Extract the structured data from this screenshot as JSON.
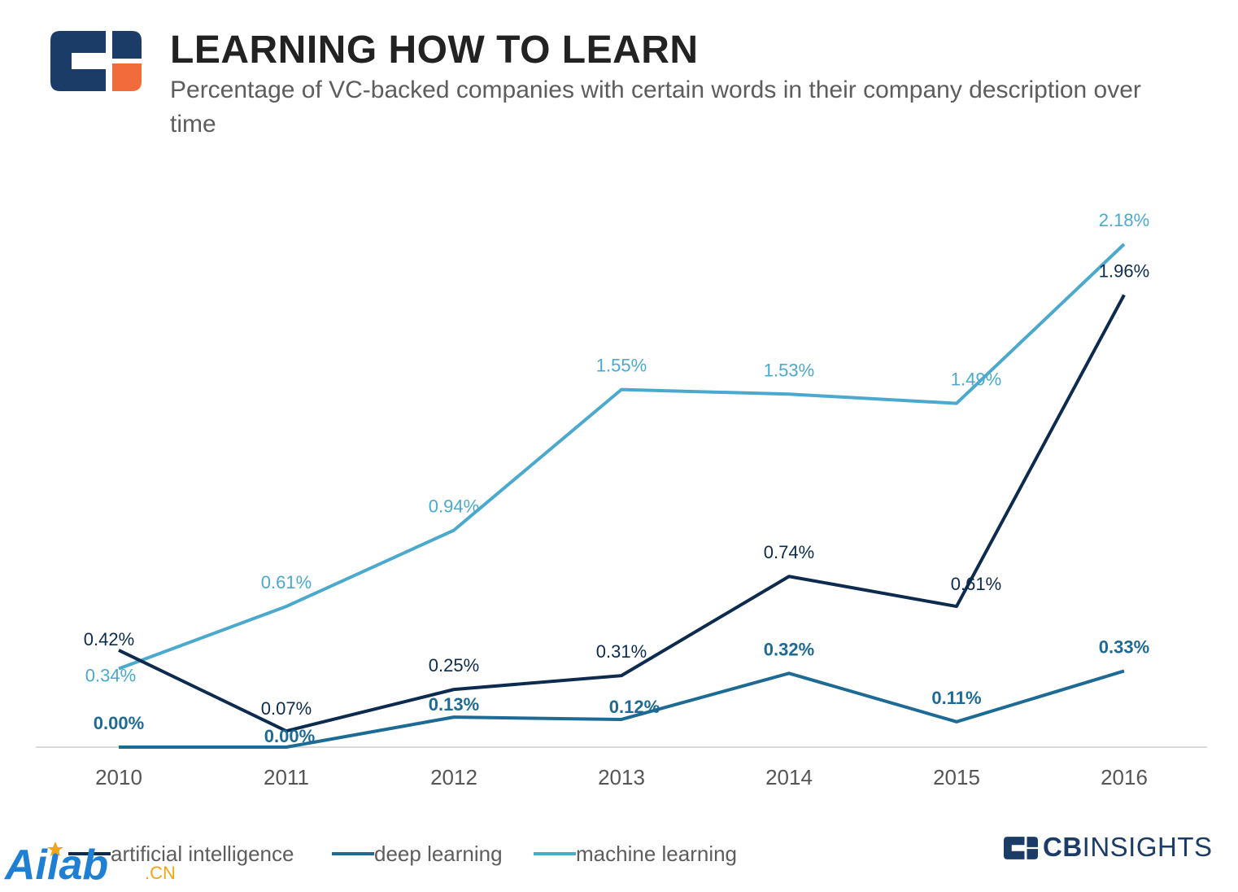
{
  "header": {
    "title": "LEARNING HOW TO LEARN",
    "subtitle": "Percentage of VC-backed companies with certain words in their company description over time"
  },
  "brand": {
    "logo_icon": "cb-insights-logo-icon",
    "name_bold": "CB",
    "name_regular": "INSIGHTS",
    "watermark_main": "Ailab",
    "watermark_suffix": ".CN"
  },
  "colors": {
    "artificial_intelligence": "#0d2b4e",
    "deep_learning": "#1d6b95",
    "machine_learning": "#4ba9cd",
    "brand_navy": "#1b3c67",
    "brand_orange": "#f26b3a",
    "axis": "#d9d9d9",
    "tick_text": "#555555"
  },
  "legend": [
    {
      "label": "artificial intelligence",
      "color": "#0d2b4e"
    },
    {
      "label": "deep learning",
      "color": "#1d6b95"
    },
    {
      "label": "machine learning",
      "color": "#4ba9cd"
    }
  ],
  "chart_data": {
    "type": "line",
    "title": "LEARNING HOW TO LEARN",
    "subtitle": "Percentage of VC-backed companies with certain words in their company description over time",
    "x": [
      "2010",
      "2011",
      "2012",
      "2013",
      "2014",
      "2015",
      "2016"
    ],
    "ylim": [
      0,
      2.4
    ],
    "grid": false,
    "legend_position": "bottom-left",
    "series": [
      {
        "name": "artificial intelligence",
        "color": "#0d2b4e",
        "values": [
          0.42,
          0.07,
          0.25,
          0.31,
          0.74,
          0.61,
          1.96
        ],
        "labels": [
          "0.42%",
          "0.07%",
          "0.25%",
          "0.31%",
          "0.74%",
          "0.61%",
          "1.96%"
        ],
        "label_bold": false
      },
      {
        "name": "deep learning",
        "color": "#1d6b95",
        "values": [
          0.0,
          0.0,
          0.13,
          0.12,
          0.32,
          0.11,
          0.33
        ],
        "labels": [
          "0.00%",
          "0.00%",
          "0.13%",
          "0.12%",
          "0.32%",
          "0.11%",
          "0.33%"
        ],
        "label_bold": true
      },
      {
        "name": "machine learning",
        "color": "#4ba9cd",
        "values": [
          0.34,
          0.61,
          0.94,
          1.55,
          1.53,
          1.49,
          2.18
        ],
        "labels": [
          "0.34%",
          "0.61%",
          "0.94%",
          "1.55%",
          "1.53%",
          "1.49%",
          "2.18%"
        ],
        "label_bold": false
      }
    ]
  }
}
